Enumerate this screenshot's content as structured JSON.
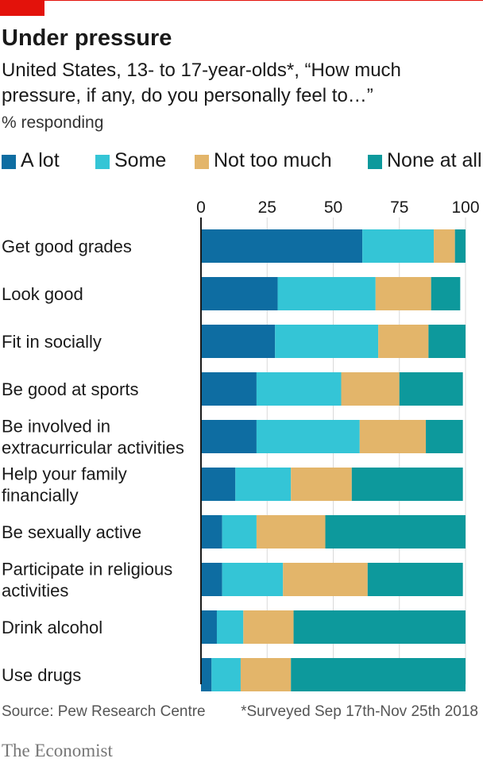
{
  "title": "Under pressure",
  "subtitle": "United States, 13- to 17-year-olds*, “How much pressure, if any, do you personally feel to…”",
  "unit": "% responding",
  "legend": [
    {
      "label": "A lot",
      "color": "#0e6da2"
    },
    {
      "label": "Some",
      "color": "#34c5d6"
    },
    {
      "label": "Not too much",
      "color": "#e3b56a"
    },
    {
      "label": "None at all",
      "color": "#0d999c"
    }
  ],
  "source": "Source: Pew Research Centre",
  "note": "*Surveyed Sep 17th-Nov 25th 2018",
  "brand": "The Economist",
  "chart_data": {
    "type": "bar",
    "orientation": "horizontal",
    "stacked": true,
    "xlim": [
      0,
      100
    ],
    "x_ticks": [
      0,
      25,
      50,
      75,
      100
    ],
    "grid": true,
    "legend_position": "top",
    "categories": [
      [
        "Get good grades"
      ],
      [
        "Look good"
      ],
      [
        "Fit in socially"
      ],
      [
        "Be good at sports"
      ],
      [
        "Be involved in",
        "extracurricular activities"
      ],
      [
        "Help your family",
        "financially"
      ],
      [
        "Be sexually active"
      ],
      [
        "Participate in religious",
        "activities"
      ],
      [
        "Drink alcohol"
      ],
      [
        "Use drugs"
      ]
    ],
    "series": [
      {
        "name": "A lot",
        "color": "#0e6da2",
        "values": [
          61,
          29,
          28,
          21,
          21,
          13,
          8,
          8,
          6,
          4
        ]
      },
      {
        "name": "Some",
        "color": "#34c5d6",
        "values": [
          27,
          37,
          39,
          32,
          39,
          21,
          13,
          23,
          10,
          11
        ]
      },
      {
        "name": "Not too much",
        "color": "#e3b56a",
        "values": [
          8,
          21,
          19,
          22,
          25,
          23,
          26,
          32,
          19,
          19
        ]
      },
      {
        "name": "None at all",
        "color": "#0d999c",
        "values": [
          4,
          11,
          14,
          24,
          14,
          42,
          53,
          36,
          65,
          66
        ]
      }
    ]
  }
}
